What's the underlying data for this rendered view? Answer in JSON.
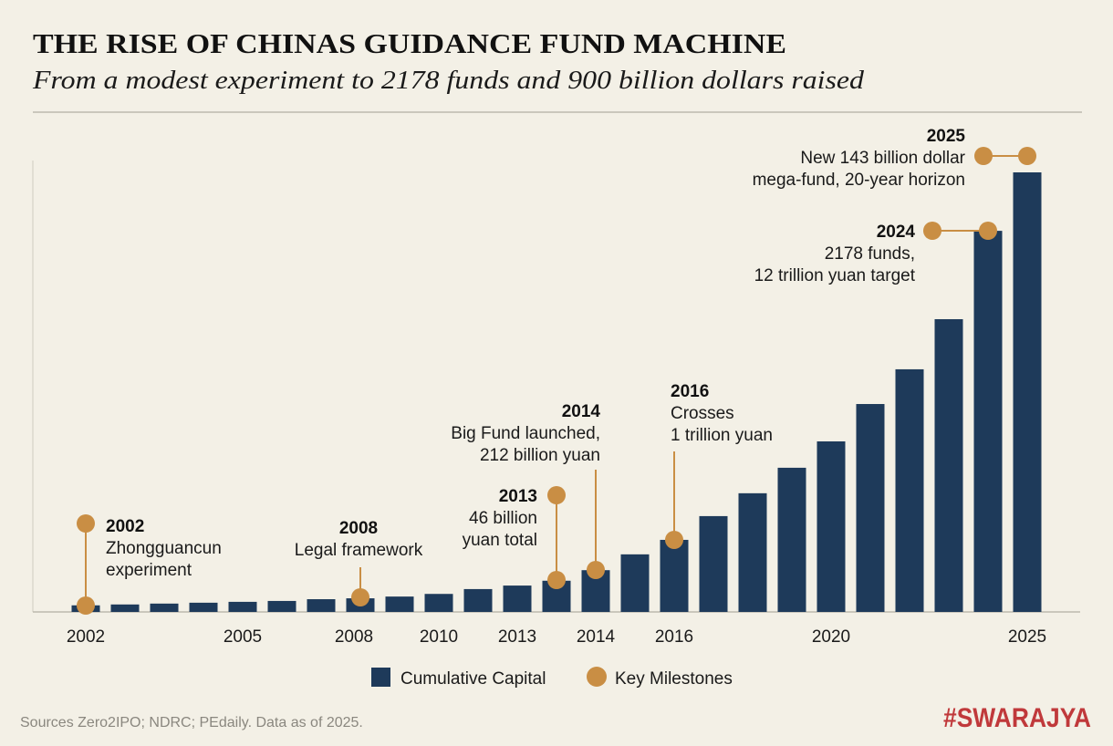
{
  "title": "THE RISE OF CHINAS GUIDANCE FUND MACHINE",
  "subtitle": "From a modest experiment to 2178 funds and 900 billion dollars raised",
  "colors": {
    "background": "#f3f0e6",
    "bar": "#1e3a5a",
    "milestone": "#c98e44",
    "brand": "#c0393b"
  },
  "chart_data": {
    "type": "bar",
    "title": "THE RISE OF CHINAS GUIDANCE FUND MACHINE",
    "xlabel": "",
    "ylabel": "",
    "y_axis_printed": false,
    "grid": false,
    "legend_placement": "bottom-center",
    "categories": [
      "2002",
      "",
      "",
      "",
      "2005",
      "",
      "",
      "2008",
      "",
      "2010",
      "",
      "2013",
      "",
      "2014",
      "",
      "2016",
      "",
      "",
      "",
      "2020",
      "",
      "",
      "",
      "",
      "2025"
    ],
    "series": [
      {
        "name": "Cumulative Capital",
        "note_relative_scale": true,
        "values": [
          1.5,
          1.7,
          1.9,
          2.1,
          2.3,
          2.5,
          2.9,
          3.1,
          3.5,
          4.1,
          5.2,
          6.0,
          7.1,
          9.5,
          13.1,
          16.4,
          21.8,
          27.0,
          32.8,
          38.8,
          47.3,
          55.2,
          66.6,
          86.7,
          100
        ]
      }
    ],
    "legend": [
      "Cumulative Capital",
      "Key Milestones"
    ],
    "milestones": [
      {
        "year": "2002",
        "lines": [
          "Zhongguancun",
          "experiment"
        ]
      },
      {
        "year": "2008",
        "lines": [
          "Legal framework"
        ]
      },
      {
        "year": "2013",
        "lines": [
          "46 billion",
          "yuan total"
        ]
      },
      {
        "year": "2014",
        "lines": [
          "Big Fund launched,",
          "212 billion yuan"
        ]
      },
      {
        "year": "2016",
        "lines": [
          "Crosses",
          "1 trillion yuan"
        ]
      },
      {
        "year": "2024",
        "lines": [
          "2178 funds,",
          "12 trillion yuan target"
        ]
      },
      {
        "year": "2025",
        "lines": [
          "New 143 billion dollar",
          "mega-fund, 20-year horizon"
        ]
      }
    ]
  },
  "footer": {
    "source": "Sources Zero2IPO; NDRC; PEdaily. Data as of 2025.",
    "brand": "#SWARAJYA"
  }
}
